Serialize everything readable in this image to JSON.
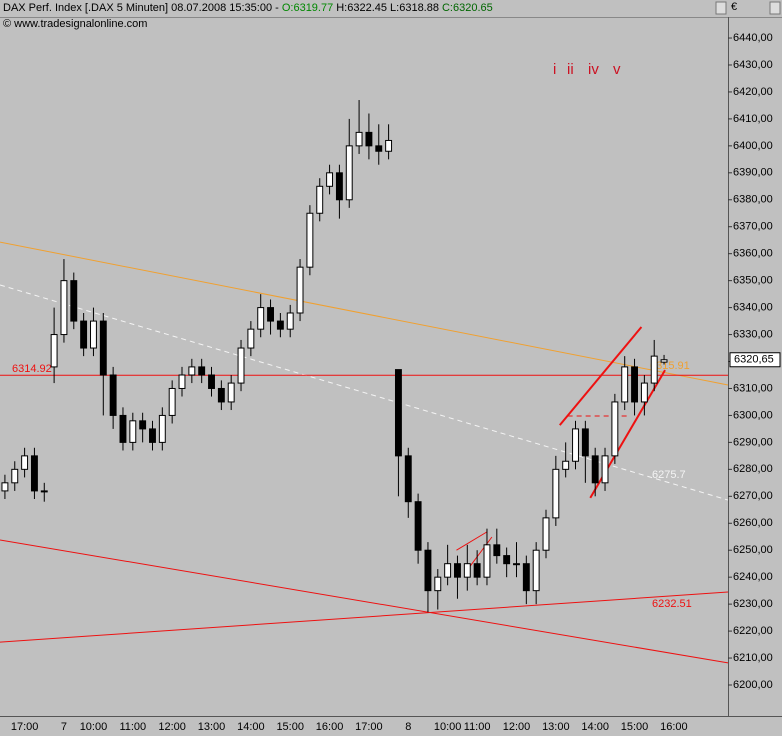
{
  "chart_data": {
    "type": "candlestick",
    "header": {
      "title": "DAX Perf. Index [.DAX  5 Minuten] 08.07.2008 15:35:00 - ",
      "open": "O:6319.77",
      "high_low": "H:6322.45 L:6318.88",
      "close": "C:6320.65",
      "copyright": "© www.tradesignalonline.com",
      "currency": "€"
    },
    "up_color": "#ffffff",
    "down_color": "#000000",
    "categories": [
      null,
      null,
      "17:00",
      null,
      null,
      null,
      "7",
      null,
      null,
      "10:00",
      null,
      null,
      null,
      "11:00",
      null,
      null,
      null,
      "12:00",
      null,
      null,
      null,
      "13:00",
      null,
      null,
      null,
      "14:00",
      null,
      null,
      null,
      "15:00",
      null,
      null,
      null,
      "16:00",
      null,
      null,
      null,
      "17:00",
      null,
      null,
      null,
      "8",
      null,
      null,
      null,
      "10:00",
      null,
      null,
      "11:00",
      null,
      null,
      null,
      "12:00",
      null,
      null,
      null,
      "13:00",
      null,
      null,
      null,
      "14:00",
      null,
      null,
      null,
      "15:00",
      null,
      null,
      null,
      "16:00",
      null,
      null,
      null,
      null,
      null
    ],
    "open": [
      6272,
      6275,
      6280,
      6285,
      6272,
      6318,
      6330,
      6350,
      6335,
      6325,
      6335,
      6315,
      6300,
      6290,
      6298,
      6295,
      6290,
      6300,
      6310,
      6315,
      6318,
      6315,
      6310,
      6305,
      6312,
      6325,
      6332,
      6340,
      6335,
      6332,
      6338,
      6355,
      6375,
      6385,
      6390,
      6380,
      6400,
      6405,
      6400,
      6398,
      6317,
      6285,
      6268,
      6250,
      6235,
      6240,
      6245,
      6240,
      6245,
      6240,
      6252,
      6248,
      6245,
      6245,
      6235,
      6250,
      6262,
      6280,
      6283,
      6295,
      6285,
      6275,
      6285,
      6305,
      6318,
      6305,
      6312,
      6319.77,
      null,
      null,
      null,
      null,
      null,
      null
    ],
    "high": [
      6278,
      6283,
      6288,
      6288,
      6275,
      6340,
      6358,
      6353,
      6338,
      6340,
      6338,
      6318,
      6303,
      6301,
      6301,
      6298,
      6303,
      6313,
      6318,
      6321,
      6321,
      6318,
      6313,
      6315,
      6328,
      6335,
      6345,
      6343,
      6338,
      6341,
      6358,
      6378,
      6388,
      6393,
      6393,
      6410,
      6417,
      6412,
      6408,
      6408,
      6317,
      6288,
      6271,
      6253,
      6243,
      6252,
      6248,
      6252,
      6250,
      6258,
      6258,
      6251,
      6253,
      6248,
      6253,
      6265,
      6285,
      6290,
      6298,
      6298,
      6288,
      6288,
      6308,
      6322,
      6321,
      6315,
      6328,
      6322.45,
      null,
      null,
      null,
      null,
      null,
      null
    ],
    "low": [
      6269,
      6272,
      6277,
      6269,
      6268,
      6312,
      6327,
      6332,
      6322,
      6322,
      6300,
      6295,
      6287,
      6287,
      6290,
      6287,
      6287,
      6297,
      6307,
      6312,
      6312,
      6307,
      6302,
      6302,
      6309,
      6322,
      6329,
      6330,
      6329,
      6329,
      6335,
      6352,
      6372,
      6382,
      6373,
      6377,
      6397,
      6395,
      6393,
      6395,
      6270,
      6262,
      6245,
      6227,
      6228,
      6237,
      6232,
      6235,
      6237,
      6237,
      6245,
      6240,
      6240,
      6230,
      6230,
      6247,
      6259,
      6277,
      6280,
      6275,
      6270,
      6272,
      6282,
      6302,
      6300,
      6300,
      6309,
      6318.88,
      null,
      null,
      null,
      null,
      null,
      null
    ],
    "close": [
      6275,
      6280,
      6285,
      6272,
      6272,
      6330,
      6350,
      6335,
      6325,
      6335,
      6315,
      6300,
      6290,
      6298,
      6295,
      6290,
      6300,
      6310,
      6315,
      6318,
      6315,
      6310,
      6305,
      6312,
      6325,
      6332,
      6340,
      6335,
      6332,
      6338,
      6355,
      6375,
      6385,
      6390,
      6380,
      6400,
      6405,
      6400,
      6398,
      6402,
      6285,
      6268,
      6250,
      6235,
      6240,
      6245,
      6240,
      6245,
      6240,
      6252,
      6248,
      6245,
      6245,
      6235,
      6250,
      6262,
      6280,
      6283,
      6295,
      6285,
      6275,
      6285,
      6305,
      6318,
      6305,
      6312,
      6322,
      6320.65,
      null,
      null,
      null,
      null,
      null,
      null
    ],
    "ylim": [
      6188.5,
      6447.8
    ],
    "yticks": [
      {
        "value": 6200,
        "label": "6200,00"
      },
      {
        "value": 6210,
        "label": "6210,00"
      },
      {
        "value": 6220,
        "label": "6220,00"
      },
      {
        "value": 6230,
        "label": "6230,00"
      },
      {
        "value": 6240,
        "label": "6240,00"
      },
      {
        "value": 6250,
        "label": "6250,00"
      },
      {
        "value": 6260,
        "label": "6260,00"
      },
      {
        "value": 6270,
        "label": "6270,00"
      },
      {
        "value": 6280,
        "label": "6280,00"
      },
      {
        "value": 6290,
        "label": "6290,00"
      },
      {
        "value": 6300,
        "label": "6300,00"
      },
      {
        "value": 6310,
        "label": "6310,00"
      },
      {
        "value": 6320,
        "label": "6320,00"
      },
      {
        "value": 6330,
        "label": "6330,00"
      },
      {
        "value": 6340,
        "label": "6340,00"
      },
      {
        "value": 6350,
        "label": "6350,00"
      },
      {
        "value": 6360,
        "label": "6360,00"
      },
      {
        "value": 6370,
        "label": "6370,00"
      },
      {
        "value": 6380,
        "label": "6380,00"
      },
      {
        "value": 6390,
        "label": "6390,00"
      },
      {
        "value": 6400,
        "label": "6400,00"
      },
      {
        "value": 6410,
        "label": "6410,00"
      },
      {
        "value": 6420,
        "label": "6420,00"
      },
      {
        "value": 6430,
        "label": "6430,00"
      },
      {
        "value": 6440,
        "label": "6440,00"
      }
    ],
    "last_price": {
      "value": 6320.65,
      "label": "6320,65"
    },
    "lines": [
      {
        "color": "#f0a030",
        "dash": false,
        "x": [
          -0.5,
          73.5
        ],
        "values": [
          6364.3,
          6311.3
        ],
        "label": "6315.91"
      },
      {
        "color": "#f4f4f4",
        "dash": true,
        "x": [
          -0.5,
          73.5
        ],
        "values": [
          6348.4,
          6268.6
        ],
        "label": "6275.7"
      },
      {
        "color": "#ee1111",
        "dash": false,
        "x": [
          -0.5,
          73.5
        ],
        "values": [
          6314.92,
          6314.92
        ],
        "label": "6314.92"
      },
      {
        "color": "#ee1111",
        "dash": false,
        "x": [
          -0.5,
          73.5
        ],
        "values": [
          6253.8,
          6208.2
        ]
      },
      {
        "color": "#ee1111",
        "dash": false,
        "x": [
          -0.5,
          73.5
        ],
        "values": [
          6215.9,
          6234.5
        ],
        "label": "6232.51"
      },
      {
        "color": "#ee1111",
        "dash": false,
        "x": [
          56.4,
          64.7
        ],
        "values": [
          6296.4,
          6332.8
        ]
      },
      {
        "color": "#ee1111",
        "dash": false,
        "x": [
          59.5,
          67.1
        ],
        "values": [
          6269.4,
          6316.8
        ]
      },
      {
        "color": "#ee1111",
        "dash": true,
        "x": [
          57.2,
          63.3
        ],
        "values": [
          6299.8,
          6299.8
        ]
      },
      {
        "color": "#ee1111",
        "dash": false,
        "x": [
          45.9,
          49.0
        ],
        "values": [
          6250,
          6256.8
        ]
      },
      {
        "color": "#ee1111",
        "dash": false,
        "x": [
          47.0,
          49.5
        ],
        "values": [
          6242.7,
          6254.9
        ]
      }
    ],
    "annotations": [
      "i",
      "ii",
      "iv",
      "v"
    ]
  }
}
